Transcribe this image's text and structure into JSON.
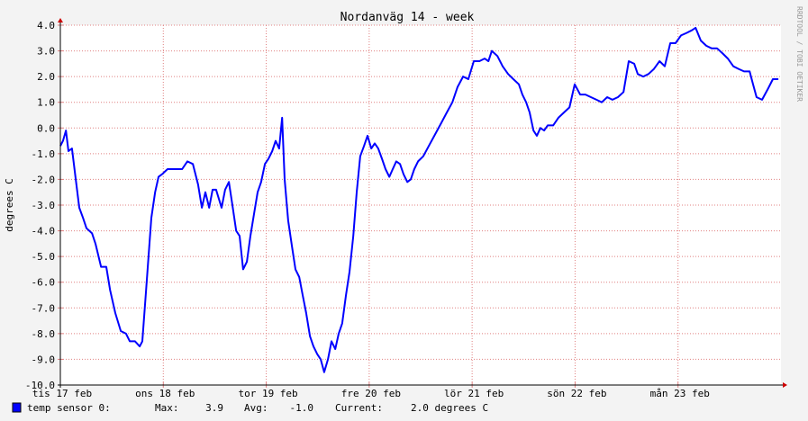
{
  "chart_data": {
    "type": "line",
    "title": "Nordanväg 14 - week",
    "y_label": "degrees C",
    "side_text": "RRDTOOL / TOBI OETIKER",
    "xlim": [
      0,
      168
    ],
    "ylim": [
      -10,
      4
    ],
    "xticks": [
      {
        "value": 0,
        "label": "tis 17 feb"
      },
      {
        "value": 24,
        "label": "ons 18 feb"
      },
      {
        "value": 48,
        "label": "tor 19 feb"
      },
      {
        "value": 72,
        "label": "fre 20 feb"
      },
      {
        "value": 96,
        "label": "lör 21 feb"
      },
      {
        "value": 120,
        "label": "sön 22 feb"
      },
      {
        "value": 144,
        "label": "mån 23 feb"
      }
    ],
    "yticks": [
      {
        "value": 4,
        "label": "4.0"
      },
      {
        "value": 3,
        "label": "3.0"
      },
      {
        "value": 2,
        "label": "2.0"
      },
      {
        "value": 1,
        "label": "1.0"
      },
      {
        "value": 0,
        "label": "0.0"
      },
      {
        "value": -1,
        "label": "-1.0"
      },
      {
        "value": -2,
        "label": "-2.0"
      },
      {
        "value": -3,
        "label": "-3.0"
      },
      {
        "value": -4,
        "label": "-4.0"
      },
      {
        "value": -5,
        "label": "-5.0"
      },
      {
        "value": -6,
        "label": "-6.0"
      },
      {
        "value": -7,
        "label": "-7.0"
      },
      {
        "value": -8,
        "label": "-8.0"
      },
      {
        "value": -9,
        "label": "-9.0"
      },
      {
        "value": -10,
        "label": "-10.0"
      }
    ],
    "grid": true,
    "x": [
      0,
      0.6,
      1.3,
      1.9,
      2.7,
      3.6,
      4.4,
      5.3,
      6.1,
      7.4,
      8.2,
      9.5,
      10.7,
      11.6,
      12.8,
      14.1,
      15.3,
      16.2,
      17.4,
      18.5,
      19.1,
      20.0,
      21.2,
      22.1,
      22.9,
      23.7,
      25.0,
      25.8,
      27.1,
      28.4,
      29.6,
      30.9,
      32.1,
      33.0,
      33.8,
      34.7,
      35.5,
      36.3,
      37.6,
      38.4,
      39.3,
      40.1,
      41.0,
      41.8,
      42.6,
      43.5,
      44.3,
      45.2,
      46.0,
      46.8,
      47.7,
      48.5,
      49.4,
      50.2,
      51.0,
      51.7,
      52.3,
      53.1,
      54.0,
      54.8,
      55.7,
      56.5,
      57.3,
      58.2,
      59.0,
      59.9,
      60.7,
      61.5,
      62.4,
      63.2,
      64.1,
      64.9,
      65.7,
      66.6,
      67.4,
      68.3,
      69.1,
      69.9,
      70.8,
      71.6,
      72.5,
      73.3,
      74.1,
      75.0,
      75.8,
      76.7,
      77.5,
      78.3,
      79.2,
      80.0,
      80.9,
      81.7,
      82.5,
      83.4,
      84.6,
      85.9,
      87.2,
      88.8,
      90.1,
      91.4,
      92.6,
      93.9,
      95.1,
      96.4,
      97.7,
      98.9,
      99.8,
      100.6,
      101.9,
      103.1,
      104.4,
      105.6,
      106.9,
      107.7,
      108.6,
      109.4,
      110.3,
      111.1,
      111.9,
      112.8,
      113.6,
      114.9,
      116.1,
      117.4,
      118.7,
      119.9,
      121.2,
      122.4,
      123.7,
      125.0,
      126.2,
      127.5,
      128.7,
      130.0,
      131.3,
      132.5,
      133.8,
      134.6,
      135.9,
      137.1,
      138.4,
      139.7,
      140.9,
      142.2,
      143.4,
      144.7,
      146.0,
      147.2,
      148.1,
      149.3,
      150.6,
      151.8,
      153.1,
      154.4,
      155.6,
      156.9,
      158.1,
      159.4,
      160.7,
      161.5,
      162.3,
      163.6,
      164.9,
      166.1,
      167.4
    ],
    "series": [
      {
        "name": "temp sensor 0:",
        "color": "#0000ff",
        "values": [
          -0.7,
          -0.5,
          -0.1,
          -0.9,
          -0.8,
          -2.0,
          -3.1,
          -3.5,
          -3.9,
          -4.1,
          -4.5,
          -5.4,
          -5.4,
          -6.3,
          -7.2,
          -7.9,
          -8.0,
          -8.3,
          -8.3,
          -8.5,
          -8.3,
          -6.3,
          -3.5,
          -2.5,
          -1.9,
          -1.8,
          -1.6,
          -1.6,
          -1.6,
          -1.6,
          -1.3,
          -1.4,
          -2.2,
          -3.1,
          -2.5,
          -3.1,
          -2.4,
          -2.4,
          -3.1,
          -2.4,
          -2.1,
          -3.0,
          -4.0,
          -4.2,
          -5.5,
          -5.2,
          -4.2,
          -3.3,
          -2.5,
          -2.1,
          -1.4,
          -1.2,
          -0.9,
          -0.5,
          -0.8,
          0.4,
          -2.0,
          -3.6,
          -4.6,
          -5.5,
          -5.8,
          -6.5,
          -7.2,
          -8.1,
          -8.5,
          -8.8,
          -9.0,
          -9.5,
          -9.0,
          -8.3,
          -8.6,
          -8.0,
          -7.6,
          -6.5,
          -5.6,
          -4.2,
          -2.5,
          -1.1,
          -0.7,
          -0.3,
          -0.8,
          -0.6,
          -0.8,
          -1.2,
          -1.6,
          -1.9,
          -1.6,
          -1.3,
          -1.4,
          -1.8,
          -2.1,
          -2.0,
          -1.6,
          -1.3,
          -1.1,
          -0.7,
          -0.3,
          0.2,
          0.6,
          1.0,
          1.6,
          2.0,
          1.9,
          2.6,
          2.6,
          2.7,
          2.6,
          3.0,
          2.8,
          2.4,
          2.1,
          1.9,
          1.7,
          1.3,
          1.0,
          0.6,
          -0.1,
          -0.3,
          0.0,
          -0.1,
          0.1,
          0.1,
          0.4,
          0.6,
          0.8,
          1.7,
          1.3,
          1.3,
          1.2,
          1.1,
          1.0,
          1.2,
          1.1,
          1.2,
          1.4,
          2.6,
          2.5,
          2.1,
          2.0,
          2.1,
          2.3,
          2.6,
          2.4,
          3.3,
          3.3,
          3.6,
          3.7,
          3.8,
          3.9,
          3.4,
          3.2,
          3.1,
          3.1,
          2.9,
          2.7,
          2.4,
          2.3,
          2.2,
          2.2,
          1.7,
          1.2,
          1.1,
          1.5,
          1.9,
          1.9
        ]
      }
    ],
    "legend_stats": {
      "max_label": "Max:",
      "max": "3.9",
      "avg_label": "Avg:",
      "avg": "-1.0",
      "current_label": "Current:",
      "current": "2.0 degrees C"
    }
  }
}
